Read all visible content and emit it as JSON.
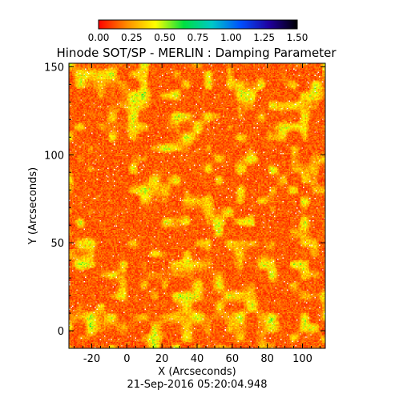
{
  "chart_data": {
    "type": "heatmap",
    "title": "Hinode SOT/SP - MERLIN : Damping Parameter",
    "xlabel": "X (Arcseconds)",
    "ylabel": "Y (Arcseconds)",
    "xlim": [
      -33,
      113
    ],
    "ylim": [
      -10,
      152
    ],
    "x_ticks": [
      -20,
      0,
      20,
      40,
      60,
      80,
      100
    ],
    "y_ticks": [
      0,
      50,
      100,
      150
    ],
    "colorbar": {
      "range": [
        0.0,
        1.5
      ],
      "tick_labels": [
        "0.00",
        "0.25",
        "0.50",
        "0.75",
        "1.00",
        "1.25",
        "1.50"
      ],
      "colors": [
        "#ff0000",
        "#ff8c00",
        "#ffff00",
        "#00e040",
        "#00c8c8",
        "#0050ff",
        "#2000a0",
        "#000000"
      ]
    },
    "field_description": "Mostly low damping (0.0-0.3, red/orange) with a network of elevated values (0.4-0.8, yellow/green) and scattered saturated pixels",
    "timestamp": "21-Sep-2016 05:20:04.948"
  }
}
